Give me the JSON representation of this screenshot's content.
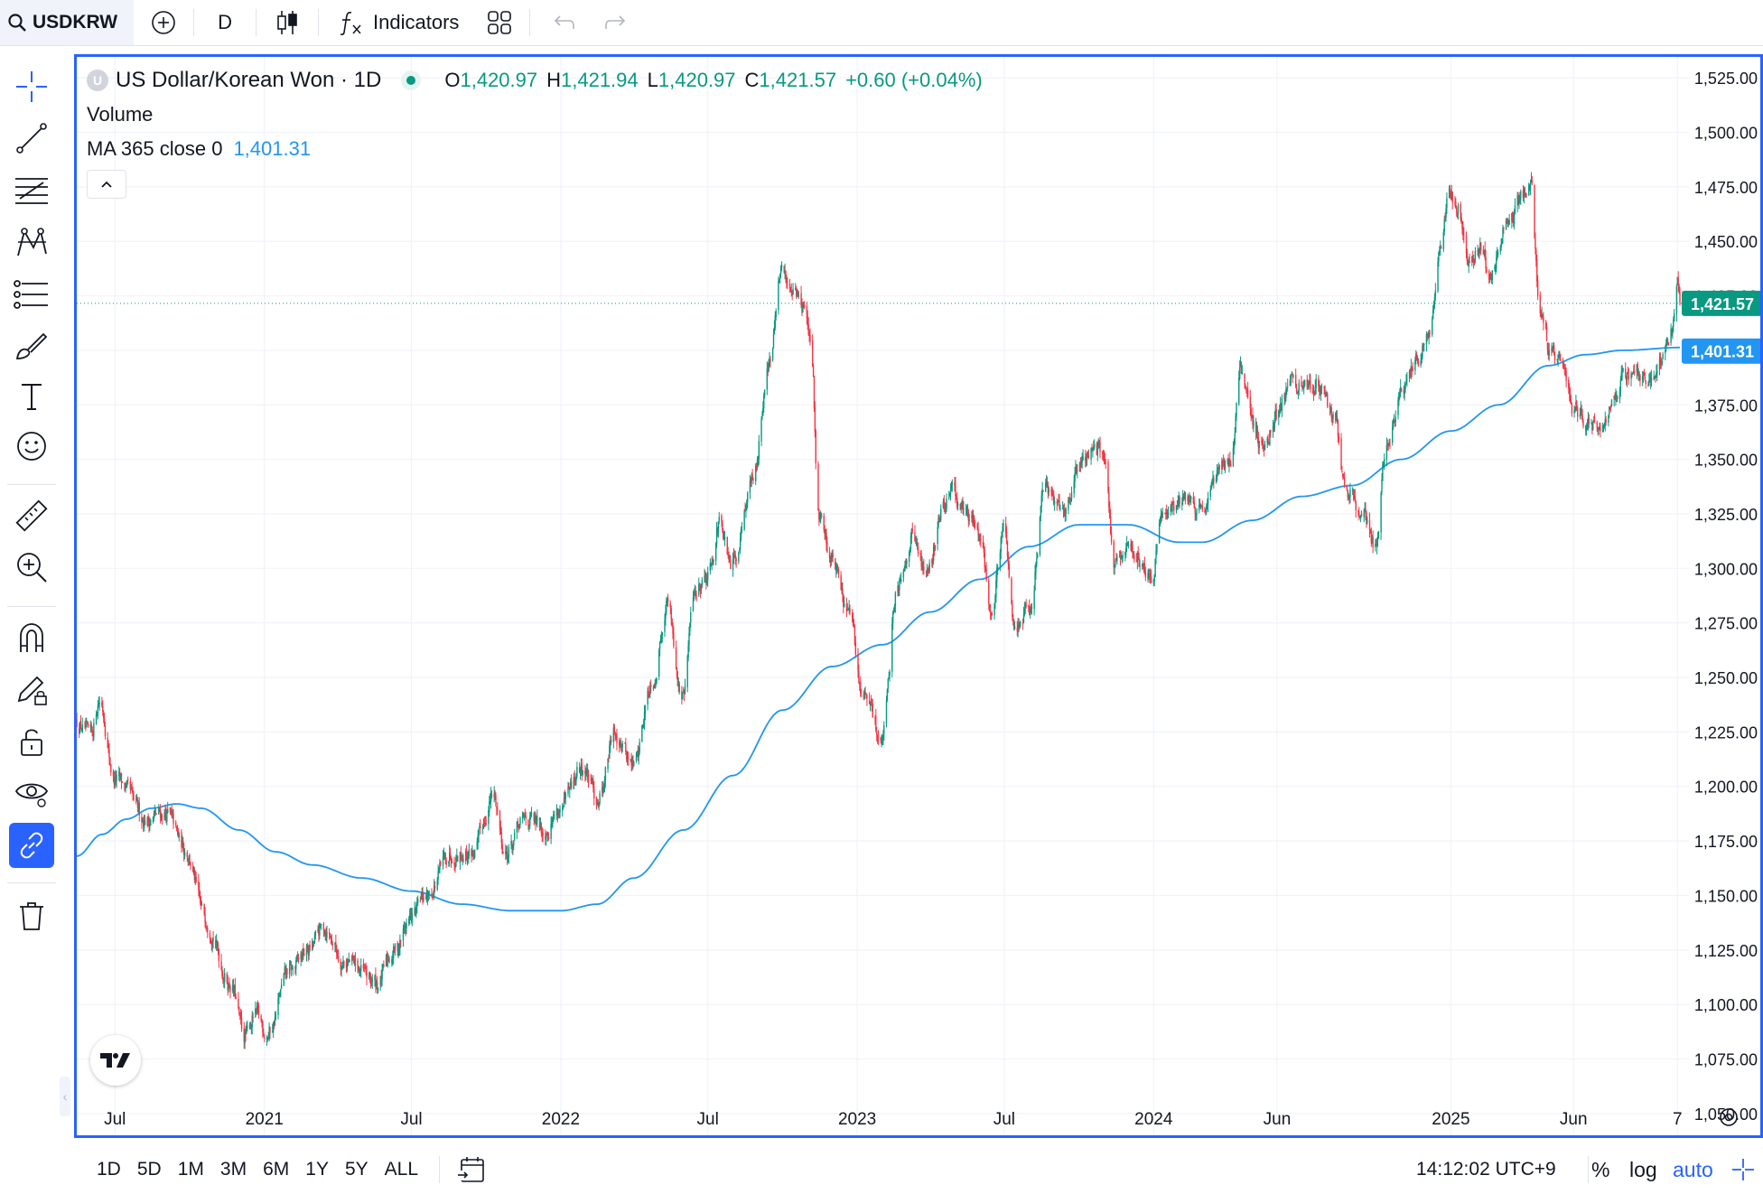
{
  "toolbar": {
    "symbol": "USDKRW",
    "interval": "D",
    "indicators_label": "Indicators"
  },
  "legend": {
    "logo_letter": "U",
    "title": "US Dollar/Korean Won · 1D",
    "open_key": "O",
    "open": "1,420.97",
    "high_key": "H",
    "high": "1,421.94",
    "low_key": "L",
    "low": "1,420.97",
    "close_key": "C",
    "close": "1,421.57",
    "change": "+0.60 (+0.04%)",
    "volume_label": "Volume",
    "ma_label": "MA 365 close 0",
    "ma_value": "1,401.31"
  },
  "range_buttons": [
    "1D",
    "5D",
    "1M",
    "3M",
    "6M",
    "1Y",
    "5Y",
    "ALL"
  ],
  "status": {
    "clock": "14:12:02 UTC+9",
    "percent": "%",
    "log": "log",
    "auto": "auto"
  },
  "colors": {
    "up": "#089981",
    "down": "#f23645",
    "ma": "#2196f3",
    "accent": "#2962ff"
  },
  "left_tools": [
    "crosshair-icon",
    "trend-line-icon",
    "fib-retracement-icon",
    "pattern-icon",
    "prediction-icon",
    "brush-icon",
    "text-icon",
    "emoji-icon",
    "ruler-icon",
    "zoom-in-icon",
    "magnet-icon",
    "drawing-lock-icon",
    "lock-icon",
    "eye-icon",
    "link-icon",
    "trash-icon"
  ],
  "chart_data": {
    "type": "candlestick",
    "title": "US Dollar/Korean Won · 1D",
    "ylim": [
      1040,
      1535
    ],
    "y_ticks": [
      "1,050.00",
      "1,075.00",
      "1,100.00",
      "1,125.00",
      "1,150.00",
      "1,175.00",
      "1,200.00",
      "1,225.00",
      "1,250.00",
      "1,275.00",
      "1,300.00",
      "1,325.00",
      "1,350.00",
      "1,375.00",
      "1,400.00",
      "1,425.00",
      "1,450.00",
      "1,475.00",
      "1,500.00",
      "1,525.00"
    ],
    "y_tick_values": [
      1050,
      1075,
      1100,
      1125,
      1150,
      1175,
      1200,
      1225,
      1250,
      1275,
      1300,
      1325,
      1350,
      1375,
      1400,
      1425,
      1450,
      1475,
      1500,
      1525
    ],
    "x_ticks": [
      {
        "label": "Jul",
        "date": "2020-07-01"
      },
      {
        "label": "2021",
        "date": "2021-01-01"
      },
      {
        "label": "Jul",
        "date": "2021-07-01"
      },
      {
        "label": "2022",
        "date": "2022-01-01"
      },
      {
        "label": "Jul",
        "date": "2022-07-01"
      },
      {
        "label": "2023",
        "date": "2023-01-01"
      },
      {
        "label": "Jul",
        "date": "2023-07-01"
      },
      {
        "label": "2024",
        "date": "2024-01-01"
      },
      {
        "label": "Jun",
        "date": "2024-06-01"
      },
      {
        "label": "2025",
        "date": "2025-01-01"
      },
      {
        "label": "Jun",
        "date": "2025-06-01"
      },
      {
        "label": "7",
        "date": "2025-10-07"
      }
    ],
    "date_range": [
      "2020-05-15",
      "2025-10-10"
    ],
    "price_anchors": [
      [
        "2020-05-15",
        1230
      ],
      [
        "2020-06-01",
        1222
      ],
      [
        "2020-06-12",
        1240
      ],
      [
        "2020-07-01",
        1203
      ],
      [
        "2020-08-10",
        1185
      ],
      [
        "2020-09-01",
        1188
      ],
      [
        "2020-09-25",
        1172
      ],
      [
        "2020-10-20",
        1140
      ],
      [
        "2020-11-20",
        1110
      ],
      [
        "2020-12-08",
        1085
      ],
      [
        "2020-12-20",
        1095
      ],
      [
        "2021-01-05",
        1087
      ],
      [
        "2021-02-01",
        1115
      ],
      [
        "2021-02-25",
        1125
      ],
      [
        "2021-03-15",
        1135
      ],
      [
        "2021-04-10",
        1120
      ],
      [
        "2021-05-20",
        1110
      ],
      [
        "2021-06-10",
        1125
      ],
      [
        "2021-07-01",
        1140
      ],
      [
        "2021-07-20",
        1150
      ],
      [
        "2021-08-20",
        1170
      ],
      [
        "2021-09-15",
        1170
      ],
      [
        "2021-10-10",
        1195
      ],
      [
        "2021-10-25",
        1170
      ],
      [
        "2021-11-20",
        1185
      ],
      [
        "2021-12-10",
        1180
      ],
      [
        "2022-01-01",
        1190
      ],
      [
        "2022-01-28",
        1208
      ],
      [
        "2022-02-15",
        1195
      ],
      [
        "2022-03-10",
        1225
      ],
      [
        "2022-03-31",
        1210
      ],
      [
        "2022-04-25",
        1250
      ],
      [
        "2022-05-12",
        1285
      ],
      [
        "2022-05-31",
        1240
      ],
      [
        "2022-06-15",
        1290
      ],
      [
        "2022-06-30",
        1298
      ],
      [
        "2022-07-15",
        1320
      ],
      [
        "2022-07-29",
        1300
      ],
      [
        "2022-08-25",
        1340
      ],
      [
        "2022-09-15",
        1395
      ],
      [
        "2022-09-30",
        1435
      ],
      [
        "2022-10-12",
        1430
      ],
      [
        "2022-10-28",
        1420
      ],
      [
        "2022-11-05",
        1400
      ],
      [
        "2022-11-15",
        1325
      ],
      [
        "2022-12-01",
        1305
      ],
      [
        "2022-12-20",
        1280
      ],
      [
        "2023-01-10",
        1240
      ],
      [
        "2023-02-01",
        1222
      ],
      [
        "2023-02-20",
        1295
      ],
      [
        "2023-03-10",
        1315
      ],
      [
        "2023-03-25",
        1300
      ],
      [
        "2023-04-25",
        1335
      ],
      [
        "2023-05-15",
        1325
      ],
      [
        "2023-06-01",
        1320
      ],
      [
        "2023-06-15",
        1280
      ],
      [
        "2023-06-30",
        1315
      ],
      [
        "2023-07-15",
        1275
      ],
      [
        "2023-08-01",
        1280
      ],
      [
        "2023-08-20",
        1335
      ],
      [
        "2023-09-15",
        1330
      ],
      [
        "2023-10-05",
        1350
      ],
      [
        "2023-10-20",
        1355
      ],
      [
        "2023-11-01",
        1350
      ],
      [
        "2023-11-15",
        1300
      ],
      [
        "2023-12-05",
        1310
      ],
      [
        "2023-12-28",
        1295
      ],
      [
        "2024-01-15",
        1330
      ],
      [
        "2024-02-15",
        1330
      ],
      [
        "2024-03-01",
        1330
      ],
      [
        "2024-04-05",
        1350
      ],
      [
        "2024-04-16",
        1390
      ],
      [
        "2024-05-15",
        1355
      ],
      [
        "2024-06-01",
        1370
      ],
      [
        "2024-06-15",
        1385
      ],
      [
        "2024-07-05",
        1382
      ],
      [
        "2024-07-20",
        1385
      ],
      [
        "2024-08-10",
        1370
      ],
      [
        "2024-08-25",
        1335
      ],
      [
        "2024-09-15",
        1325
      ],
      [
        "2024-09-30",
        1310
      ],
      [
        "2024-10-15",
        1360
      ],
      [
        "2024-11-01",
        1380
      ],
      [
        "2024-11-20",
        1395
      ],
      [
        "2024-12-05",
        1410
      ],
      [
        "2024-12-20",
        1450
      ],
      [
        "2024-12-30",
        1470
      ],
      [
        "2025-01-10",
        1465
      ],
      [
        "2025-01-25",
        1440
      ],
      [
        "2025-02-05",
        1445
      ],
      [
        "2025-02-20",
        1435
      ],
      [
        "2025-03-10",
        1455
      ],
      [
        "2025-03-31",
        1470
      ],
      [
        "2025-04-09",
        1480
      ],
      [
        "2025-04-20",
        1420
      ],
      [
        "2025-05-05",
        1400
      ],
      [
        "2025-05-15",
        1395
      ],
      [
        "2025-06-01",
        1372
      ],
      [
        "2025-06-20",
        1368
      ],
      [
        "2025-07-05",
        1360
      ],
      [
        "2025-07-20",
        1380
      ],
      [
        "2025-08-05",
        1388
      ],
      [
        "2025-08-20",
        1390
      ],
      [
        "2025-09-10",
        1385
      ],
      [
        "2025-09-22",
        1400
      ],
      [
        "2025-10-01",
        1408
      ],
      [
        "2025-10-07",
        1430
      ],
      [
        "2025-10-10",
        1421.57
      ]
    ],
    "ma_anchors": [
      [
        "2020-05-15",
        1168
      ],
      [
        "2020-06-15",
        1178
      ],
      [
        "2020-07-15",
        1185
      ],
      [
        "2020-08-15",
        1190
      ],
      [
        "2020-09-15",
        1192
      ],
      [
        "2020-10-15",
        1190
      ],
      [
        "2020-12-01",
        1180
      ],
      [
        "2021-01-15",
        1170
      ],
      [
        "2021-03-01",
        1164
      ],
      [
        "2021-05-01",
        1158
      ],
      [
        "2021-07-01",
        1152
      ],
      [
        "2021-09-01",
        1146
      ],
      [
        "2021-11-01",
        1143
      ],
      [
        "2022-01-01",
        1143
      ],
      [
        "2022-02-15",
        1146
      ],
      [
        "2022-04-01",
        1158
      ],
      [
        "2022-06-01",
        1180
      ],
      [
        "2022-08-01",
        1205
      ],
      [
        "2022-10-01",
        1235
      ],
      [
        "2022-12-01",
        1255
      ],
      [
        "2023-02-01",
        1265
      ],
      [
        "2023-04-01",
        1280
      ],
      [
        "2023-06-01",
        1295
      ],
      [
        "2023-08-01",
        1310
      ],
      [
        "2023-10-01",
        1320
      ],
      [
        "2023-12-01",
        1320
      ],
      [
        "2024-02-01",
        1312
      ],
      [
        "2024-03-01",
        1312
      ],
      [
        "2024-05-01",
        1322
      ],
      [
        "2024-07-01",
        1333
      ],
      [
        "2024-09-01",
        1338
      ],
      [
        "2024-11-01",
        1350
      ],
      [
        "2025-01-01",
        1363
      ],
      [
        "2025-03-01",
        1375
      ],
      [
        "2025-05-01",
        1393
      ],
      [
        "2025-06-15",
        1398
      ],
      [
        "2025-08-01",
        1400
      ],
      [
        "2025-10-10",
        1401.31
      ]
    ],
    "last_price": 1421.57,
    "last_price_label": "1,421.57",
    "ma_price": 1401.31,
    "ma_price_label": "1,401.31",
    "grid": true,
    "log_scale": false
  }
}
